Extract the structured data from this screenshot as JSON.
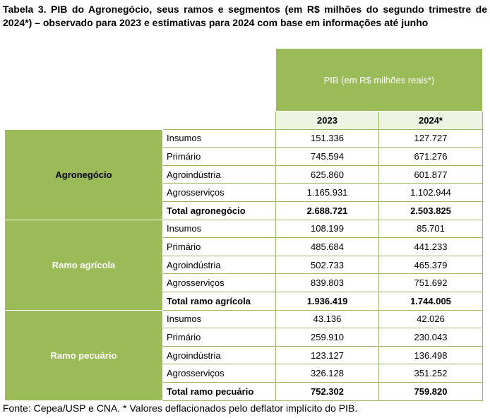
{
  "title": "Tabela 3. PIB do Agronegócio, seus ramos e segmentos (em R$ milhões do segundo trimestre de 2024*) – observado para 2023 e estimativas para 2024 com base em informações até junho",
  "header": {
    "pib_label": "PIB (em R$ milhões reais*)",
    "year_1": "2023",
    "year_2": "2024*"
  },
  "groups": [
    {
      "name": "Agronegócio",
      "rows": [
        {
          "label": "Insumos",
          "v2023": "151.336",
          "v2024": "127.727"
        },
        {
          "label": "Primário",
          "v2023": "745.594",
          "v2024": "671.276"
        },
        {
          "label": "Agroindústria",
          "v2023": "625.860",
          "v2024": "601.877"
        },
        {
          "label": "Agrosserviços",
          "v2023": "1.165.931",
          "v2024": "1.102.944"
        },
        {
          "label": "Total agronegócio",
          "v2023": "2.688.721",
          "v2024": "2.503.825"
        }
      ]
    },
    {
      "name": "Ramo agrícola",
      "rows": [
        {
          "label": "Insumos",
          "v2023": "108.199",
          "v2024": "85.701"
        },
        {
          "label": "Primário",
          "v2023": "485.684",
          "v2024": "441.233"
        },
        {
          "label": "Agroindústria",
          "v2023": "502.733",
          "v2024": "465.379"
        },
        {
          "label": "Agrosserviços",
          "v2023": "839.803",
          "v2024": "751.692"
        },
        {
          "label": "Total ramo agrícola",
          "v2023": "1.936.419",
          "v2024": "1.744.005"
        }
      ]
    },
    {
      "name": "Ramo pecuário",
      "rows": [
        {
          "label": "Insumos",
          "v2023": "43.136",
          "v2024": "42.026"
        },
        {
          "label": "Primário",
          "v2023": "259.910",
          "v2024": "230.043"
        },
        {
          "label": "Agroindústria",
          "v2023": "123.127",
          "v2024": "136.498"
        },
        {
          "label": "Agrosserviços",
          "v2023": "326.128",
          "v2024": "351.252"
        },
        {
          "label": "Total ramo pecuário",
          "v2023": "752.302",
          "v2024": "759.820"
        }
      ]
    }
  ],
  "source": "Fonte: Cepea/USP e CNA. * Valores deflacionados pelo deflator implícito do PIB.",
  "colors": {
    "header_green": "#9bbb59",
    "year_row_bg": "#eef4e2",
    "border_green": "#9bb865"
  }
}
